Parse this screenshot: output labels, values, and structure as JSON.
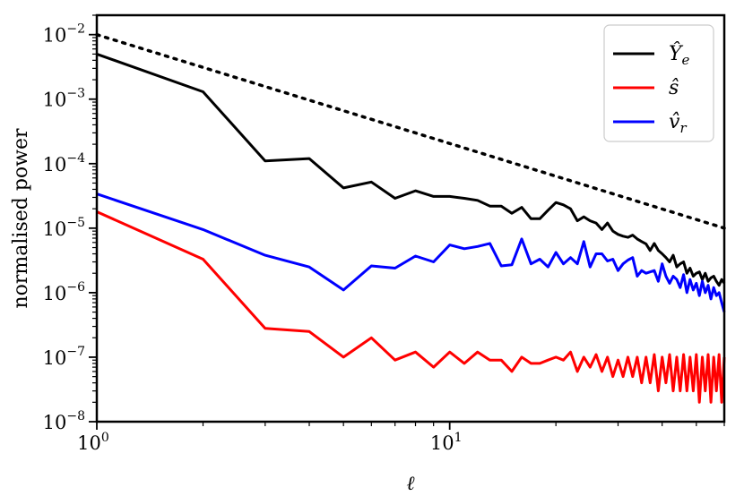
{
  "chart_data": {
    "type": "line",
    "title": "",
    "xlabel": "ℓ",
    "ylabel": "normalised power",
    "x_scale": "log",
    "y_scale": "log",
    "xlim": [
      1,
      60
    ],
    "ylim": [
      1e-08,
      0.02
    ],
    "x_ticks": [
      {
        "value": 1,
        "base": "10",
        "exp": "0"
      },
      {
        "value": 10,
        "base": "10",
        "exp": "1"
      }
    ],
    "y_ticks": [
      {
        "value": 0.01,
        "base": "10",
        "exp": "−2"
      },
      {
        "value": 0.001,
        "base": "10",
        "exp": "−3"
      },
      {
        "value": 0.0001,
        "base": "10",
        "exp": "−4"
      },
      {
        "value": 1e-05,
        "base": "10",
        "exp": "−5"
      },
      {
        "value": 1e-06,
        "base": "10",
        "exp": "−6"
      },
      {
        "value": 1e-07,
        "base": "10",
        "exp": "−7"
      },
      {
        "value": 1e-08,
        "base": "10",
        "exp": "−8"
      }
    ],
    "grid": false,
    "legend_position": "top-right",
    "reference_line": {
      "style": "dotted",
      "color": "#000000",
      "x": [
        1,
        60
      ],
      "y": [
        0.01,
        1e-05
      ]
    },
    "series": [
      {
        "name": "Ŷ",
        "name_sub": "e",
        "color": "#000000",
        "x": [
          1,
          2,
          3,
          4,
          5,
          6,
          7,
          8,
          9,
          10,
          11,
          12,
          13,
          14,
          15,
          16,
          17,
          18,
          19,
          20,
          21,
          22,
          23,
          24,
          25,
          26,
          27,
          28,
          29,
          30,
          31,
          32,
          33,
          34,
          35,
          36,
          37,
          38,
          39,
          40,
          41,
          42,
          43,
          44,
          45,
          46,
          47,
          48,
          49,
          50,
          51,
          52,
          53,
          54,
          55,
          56,
          57,
          58,
          59,
          60
        ],
        "y": [
          0.005,
          0.0013,
          0.00011,
          0.00012,
          4.2e-05,
          5.2e-05,
          2.9e-05,
          3.8e-05,
          3.1e-05,
          3.1e-05,
          2.9e-05,
          2.7e-05,
          2.2e-05,
          2.2e-05,
          1.7e-05,
          2.1e-05,
          1.4e-05,
          1.4e-05,
          1.9e-05,
          2.5e-05,
          2.3e-05,
          2e-05,
          1.3e-05,
          1.5e-05,
          1.3e-05,
          1.2e-05,
          9.5e-06,
          1.2e-05,
          9e-06,
          8e-06,
          7.5e-06,
          7.2e-06,
          7.8e-06,
          6.8e-06,
          6.2e-06,
          5.7e-06,
          4.5e-06,
          5.8e-06,
          4.5e-06,
          4e-06,
          3.5e-06,
          3e-06,
          3.8e-06,
          2.5e-06,
          2.8e-06,
          3e-06,
          2e-06,
          2.4e-06,
          1.8e-06,
          2e-06,
          2.1e-06,
          1.6e-06,
          2e-06,
          1.5e-06,
          1.7e-06,
          1.8e-06,
          1.5e-06,
          1.3e-06,
          1.6e-06,
          1.4e-06
        ]
      },
      {
        "name": "ŝ",
        "color": "#ff0000",
        "x": [
          1,
          2,
          3,
          4,
          5,
          6,
          7,
          8,
          9,
          10,
          11,
          12,
          13,
          14,
          15,
          16,
          17,
          18,
          19,
          20,
          21,
          22,
          23,
          24,
          25,
          26,
          27,
          28,
          29,
          30,
          31,
          32,
          33,
          34,
          35,
          36,
          37,
          38,
          39,
          40,
          41,
          42,
          43,
          44,
          45,
          46,
          47,
          48,
          49,
          50,
          51,
          52,
          53,
          54,
          55,
          56,
          57,
          58,
          59,
          60
        ],
        "y": [
          1.8e-05,
          3.3e-06,
          2.8e-07,
          2.5e-07,
          1e-07,
          2e-07,
          9e-08,
          1.2e-07,
          7e-08,
          1.2e-07,
          8e-08,
          1.2e-07,
          9e-08,
          9e-08,
          6e-08,
          1e-07,
          8e-08,
          8e-08,
          9e-08,
          1e-07,
          9e-08,
          1.2e-07,
          6e-08,
          1e-07,
          7e-08,
          1.1e-07,
          6e-08,
          1e-07,
          5e-08,
          9e-08,
          5e-08,
          1e-07,
          5e-08,
          1e-07,
          4e-08,
          1e-07,
          4e-08,
          1.1e-07,
          3e-08,
          1e-07,
          4e-08,
          1.1e-07,
          3e-08,
          1e-07,
          3e-08,
          1.1e-07,
          3e-08,
          1e-07,
          3e-08,
          1.1e-07,
          2e-08,
          1e-07,
          3e-08,
          1.1e-07,
          2e-08,
          1e-07,
          3e-08,
          1.1e-07,
          2e-08,
          1e-07
        ]
      },
      {
        "name": "v̂",
        "name_sub": "r",
        "color": "#0000ff",
        "x": [
          1,
          2,
          3,
          4,
          5,
          6,
          7,
          8,
          9,
          10,
          11,
          12,
          13,
          14,
          15,
          16,
          17,
          18,
          19,
          20,
          21,
          22,
          23,
          24,
          25,
          26,
          27,
          28,
          29,
          30,
          31,
          32,
          33,
          34,
          35,
          36,
          37,
          38,
          39,
          40,
          41,
          42,
          43,
          44,
          45,
          46,
          47,
          48,
          49,
          50,
          51,
          52,
          53,
          54,
          55,
          56,
          57,
          58,
          59,
          60
        ],
        "y": [
          3.4e-05,
          9.5e-06,
          3.8e-06,
          2.5e-06,
          1.1e-06,
          2.6e-06,
          2.4e-06,
          3.7e-06,
          3e-06,
          5.5e-06,
          4.8e-06,
          5.2e-06,
          5.8e-06,
          2.6e-06,
          2.7e-06,
          6.8e-06,
          2.8e-06,
          3.3e-06,
          2.5e-06,
          4.2e-06,
          2.8e-06,
          3.5e-06,
          2.8e-06,
          6.2e-06,
          2.5e-06,
          4e-06,
          4e-06,
          3.1e-06,
          3.3e-06,
          2.2e-06,
          2.8e-06,
          3.2e-06,
          3.5e-06,
          1.8e-06,
          2.2e-06,
          2e-06,
          2.1e-06,
          2.2e-06,
          1.5e-06,
          2.8e-06,
          1.8e-06,
          1.4e-06,
          1.8e-06,
          1.6e-06,
          1.2e-06,
          1.9e-06,
          1e-06,
          1.6e-06,
          1.1e-06,
          1.4e-06,
          9e-07,
          1.5e-06,
          1e-06,
          1.3e-06,
          8e-07,
          1.2e-06,
          9e-07,
          1e-06,
          7e-07,
          5e-07
        ]
      }
    ]
  }
}
